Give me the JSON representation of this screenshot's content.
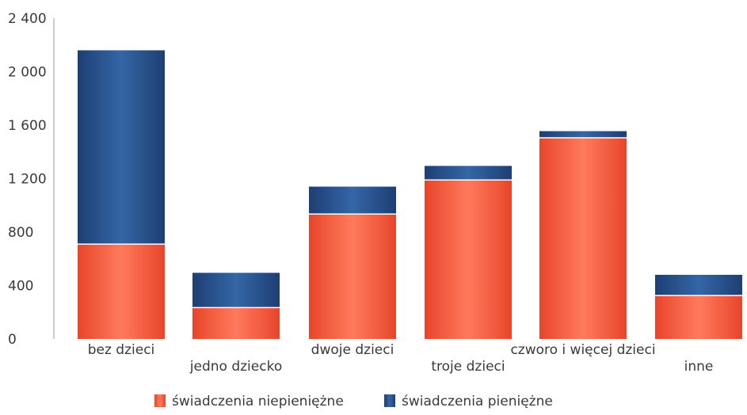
{
  "chart_data": {
    "type": "bar",
    "stacked": true,
    "categories": [
      "bez dzieci",
      "jedno dziecko",
      "dwoje dzieci",
      "troje dzieci",
      "czworo i więcej dzieci",
      "inne"
    ],
    "series": [
      {
        "name": "świadczenia niepieniężne",
        "color": "#f25a3c",
        "values": [
          710,
          235,
          935,
          1190,
          1505,
          325
        ]
      },
      {
        "name": "świadczenia pieniężne",
        "color": "#27548e",
        "values": [
          1450,
          260,
          205,
          105,
          50,
          155
        ]
      }
    ],
    "yticks": [
      "0",
      "400",
      "800",
      "1 200",
      "1 600",
      "2 000",
      "2 400"
    ],
    "ylim": [
      0,
      2400
    ],
    "legend_position": "bottom",
    "grid": false
  }
}
